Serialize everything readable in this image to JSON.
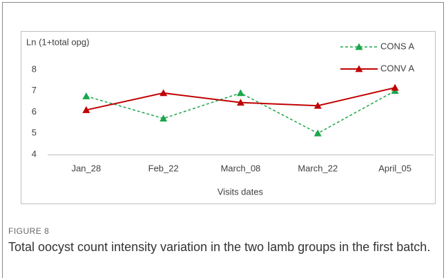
{
  "chart_data": {
    "type": "line",
    "y_label": "Ln (1+total opg)",
    "x_label": "Visits dates",
    "categories": [
      "Jan_28",
      "Feb_22",
      "March_08",
      "March_22",
      "April_05"
    ],
    "series": [
      {
        "name": "CONS A",
        "color": "#1aa64a",
        "dashed": true,
        "values": [
          6.75,
          5.7,
          6.9,
          5.0,
          7.0
        ]
      },
      {
        "name": "CONV A",
        "color": "#c00000",
        "dashed": false,
        "values": [
          6.1,
          6.9,
          6.45,
          6.3,
          7.15
        ]
      }
    ],
    "ylim": [
      4,
      8
    ],
    "yticks": [
      4,
      5,
      6,
      7,
      8
    ],
    "grid": false,
    "legend": "upper right"
  },
  "figure": {
    "label": "FIGURE 8",
    "caption": "Total oocyst count intensity variation in the two lamb groups in the first batch."
  }
}
